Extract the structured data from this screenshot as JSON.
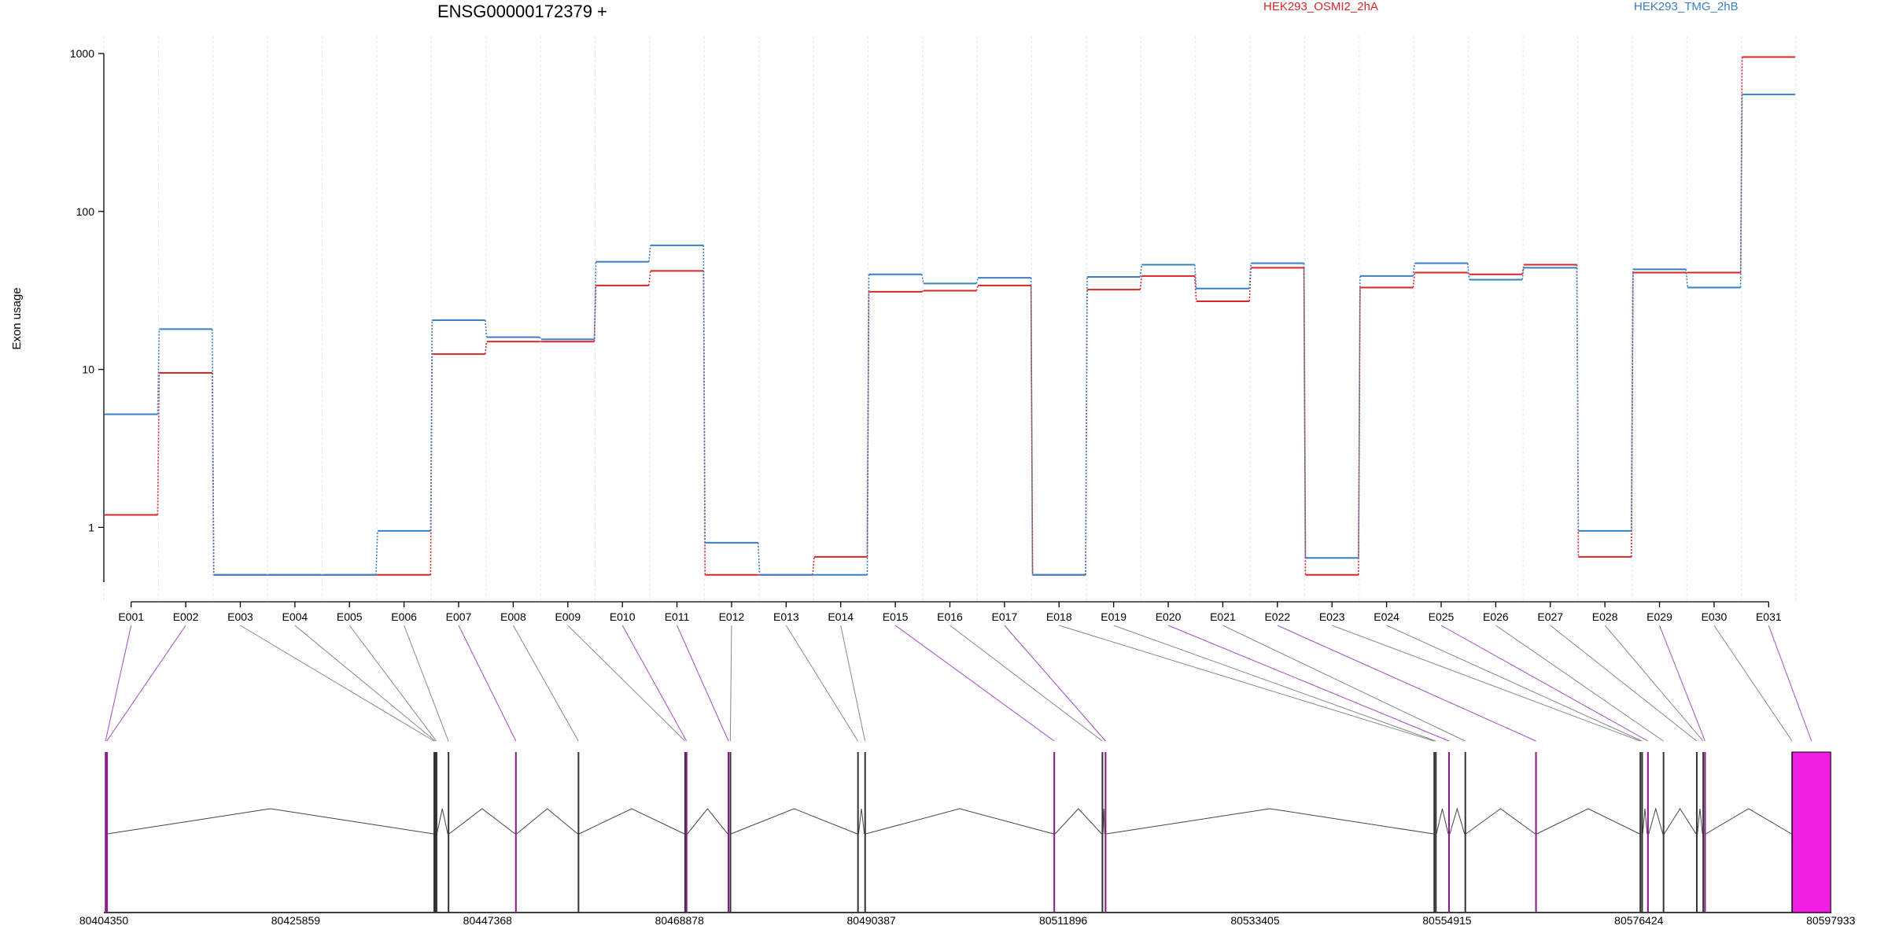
{
  "chart_data": {
    "type": "line",
    "title": "ENSG00000172379 +",
    "ylabel": "Exon usage",
    "yscale": "log",
    "ylim": [
      0.45,
      1000
    ],
    "yticks": [
      "1",
      "10",
      "100",
      "1000"
    ],
    "grid": true,
    "legend_position": "top-right",
    "colors": {
      "HEK293_OSMI2_2hA": "#d62728",
      "HEK293_TMG_2hB": "#3a7fc2",
      "exon_highlight": "#8b1a8b",
      "exon_large_fill": "#f01ee0",
      "connector_purple": "#a44bc8",
      "connector_grey": "#888888"
    },
    "categories": [
      "E001",
      "E002",
      "E003",
      "E004",
      "E005",
      "E006",
      "E007",
      "E008",
      "E009",
      "E010",
      "E011",
      "E012",
      "E013",
      "E014",
      "E015",
      "E016",
      "E017",
      "E018",
      "E019",
      "E020",
      "E021",
      "E022",
      "E023",
      "E024",
      "E025",
      "E026",
      "E027",
      "E028",
      "E029",
      "E030",
      "E031"
    ],
    "series": [
      {
        "name": "HEK293_OSMI2_2hA",
        "values": [
          1.2,
          9.5,
          0.5,
          0.5,
          0.5,
          0.5,
          12.5,
          15,
          15,
          34,
          42,
          0.5,
          0.5,
          0.65,
          31,
          31.5,
          34,
          0.5,
          32,
          39,
          27,
          44,
          0.5,
          33,
          41,
          40,
          46,
          0.65,
          41,
          41,
          950
        ]
      },
      {
        "name": "HEK293_TMG_2hB",
        "values": [
          5.2,
          18,
          0.5,
          0.5,
          0.5,
          0.95,
          20.5,
          16,
          15.5,
          48,
          61,
          0.8,
          0.5,
          0.5,
          40,
          35,
          38,
          0.5,
          38.5,
          46,
          32.5,
          47,
          0.64,
          39,
          47,
          37,
          44,
          0.95,
          43,
          33,
          550
        ]
      }
    ],
    "genome": {
      "xlim": [
        80404350,
        80598000
      ],
      "xticks": [
        "80404350",
        "80425859",
        "80447368",
        "80468878",
        "80490387",
        "80511896",
        "80533405",
        "80554915",
        "80576424",
        "80597933"
      ],
      "exons": [
        {
          "id": "E001",
          "start": 80404460,
          "end": 80404610,
          "highlight": true
        },
        {
          "id": "E002",
          "start": 80404620,
          "end": 80404740,
          "highlight": true
        },
        {
          "id": "E003",
          "start": 80441300,
          "end": 80441420,
          "highlight": false
        },
        {
          "id": "E004",
          "start": 80441430,
          "end": 80441550,
          "highlight": false
        },
        {
          "id": "E005",
          "start": 80441560,
          "end": 80441680,
          "highlight": false
        },
        {
          "id": "E006",
          "start": 80442900,
          "end": 80443050,
          "highlight": false
        },
        {
          "id": "E007",
          "start": 80450450,
          "end": 80450630,
          "highlight": true
        },
        {
          "id": "E008",
          "start": 80457470,
          "end": 80457620,
          "highlight": false
        },
        {
          "id": "E009",
          "start": 80469420,
          "end": 80469570,
          "highlight": false
        },
        {
          "id": "E010",
          "start": 80469580,
          "end": 80469760,
          "highlight": true
        },
        {
          "id": "E011",
          "start": 80474280,
          "end": 80474460,
          "highlight": true
        },
        {
          "id": "E012",
          "start": 80474500,
          "end": 80474650,
          "highlight": false
        },
        {
          "id": "E013",
          "start": 80488800,
          "end": 80488950,
          "highlight": false
        },
        {
          "id": "E014",
          "start": 80489600,
          "end": 80489750,
          "highlight": false
        },
        {
          "id": "E015",
          "start": 80510800,
          "end": 80510980,
          "highlight": true
        },
        {
          "id": "E016",
          "start": 80516200,
          "end": 80516350,
          "highlight": false
        },
        {
          "id": "E017",
          "start": 80516550,
          "end": 80516730,
          "highlight": true
        },
        {
          "id": "E018",
          "start": 80553400,
          "end": 80553550,
          "highlight": false
        },
        {
          "id": "E019",
          "start": 80553580,
          "end": 80553730,
          "highlight": false
        },
        {
          "id": "E020",
          "start": 80555050,
          "end": 80555230,
          "highlight": true
        },
        {
          "id": "E021",
          "start": 80556880,
          "end": 80557030,
          "highlight": false
        },
        {
          "id": "E022",
          "start": 80564800,
          "end": 80564980,
          "highlight": true
        },
        {
          "id": "E023",
          "start": 80576500,
          "end": 80576650,
          "highlight": false
        },
        {
          "id": "E024",
          "start": 80576700,
          "end": 80576850,
          "highlight": false
        },
        {
          "id": "E025",
          "start": 80577350,
          "end": 80577530,
          "highlight": true
        },
        {
          "id": "E026",
          "start": 80579100,
          "end": 80579250,
          "highlight": false
        },
        {
          "id": "E027",
          "start": 80582830,
          "end": 80582980,
          "highlight": false
        },
        {
          "id": "E028",
          "start": 80583550,
          "end": 80583700,
          "highlight": false
        },
        {
          "id": "E029",
          "start": 80583750,
          "end": 80583930,
          "highlight": true
        },
        {
          "id": "E030",
          "start": 80593520,
          "end": 80593670,
          "highlight": false
        },
        {
          "id": "E031",
          "start": 80593620,
          "end": 80597933,
          "highlight": true,
          "big": true
        }
      ]
    }
  }
}
